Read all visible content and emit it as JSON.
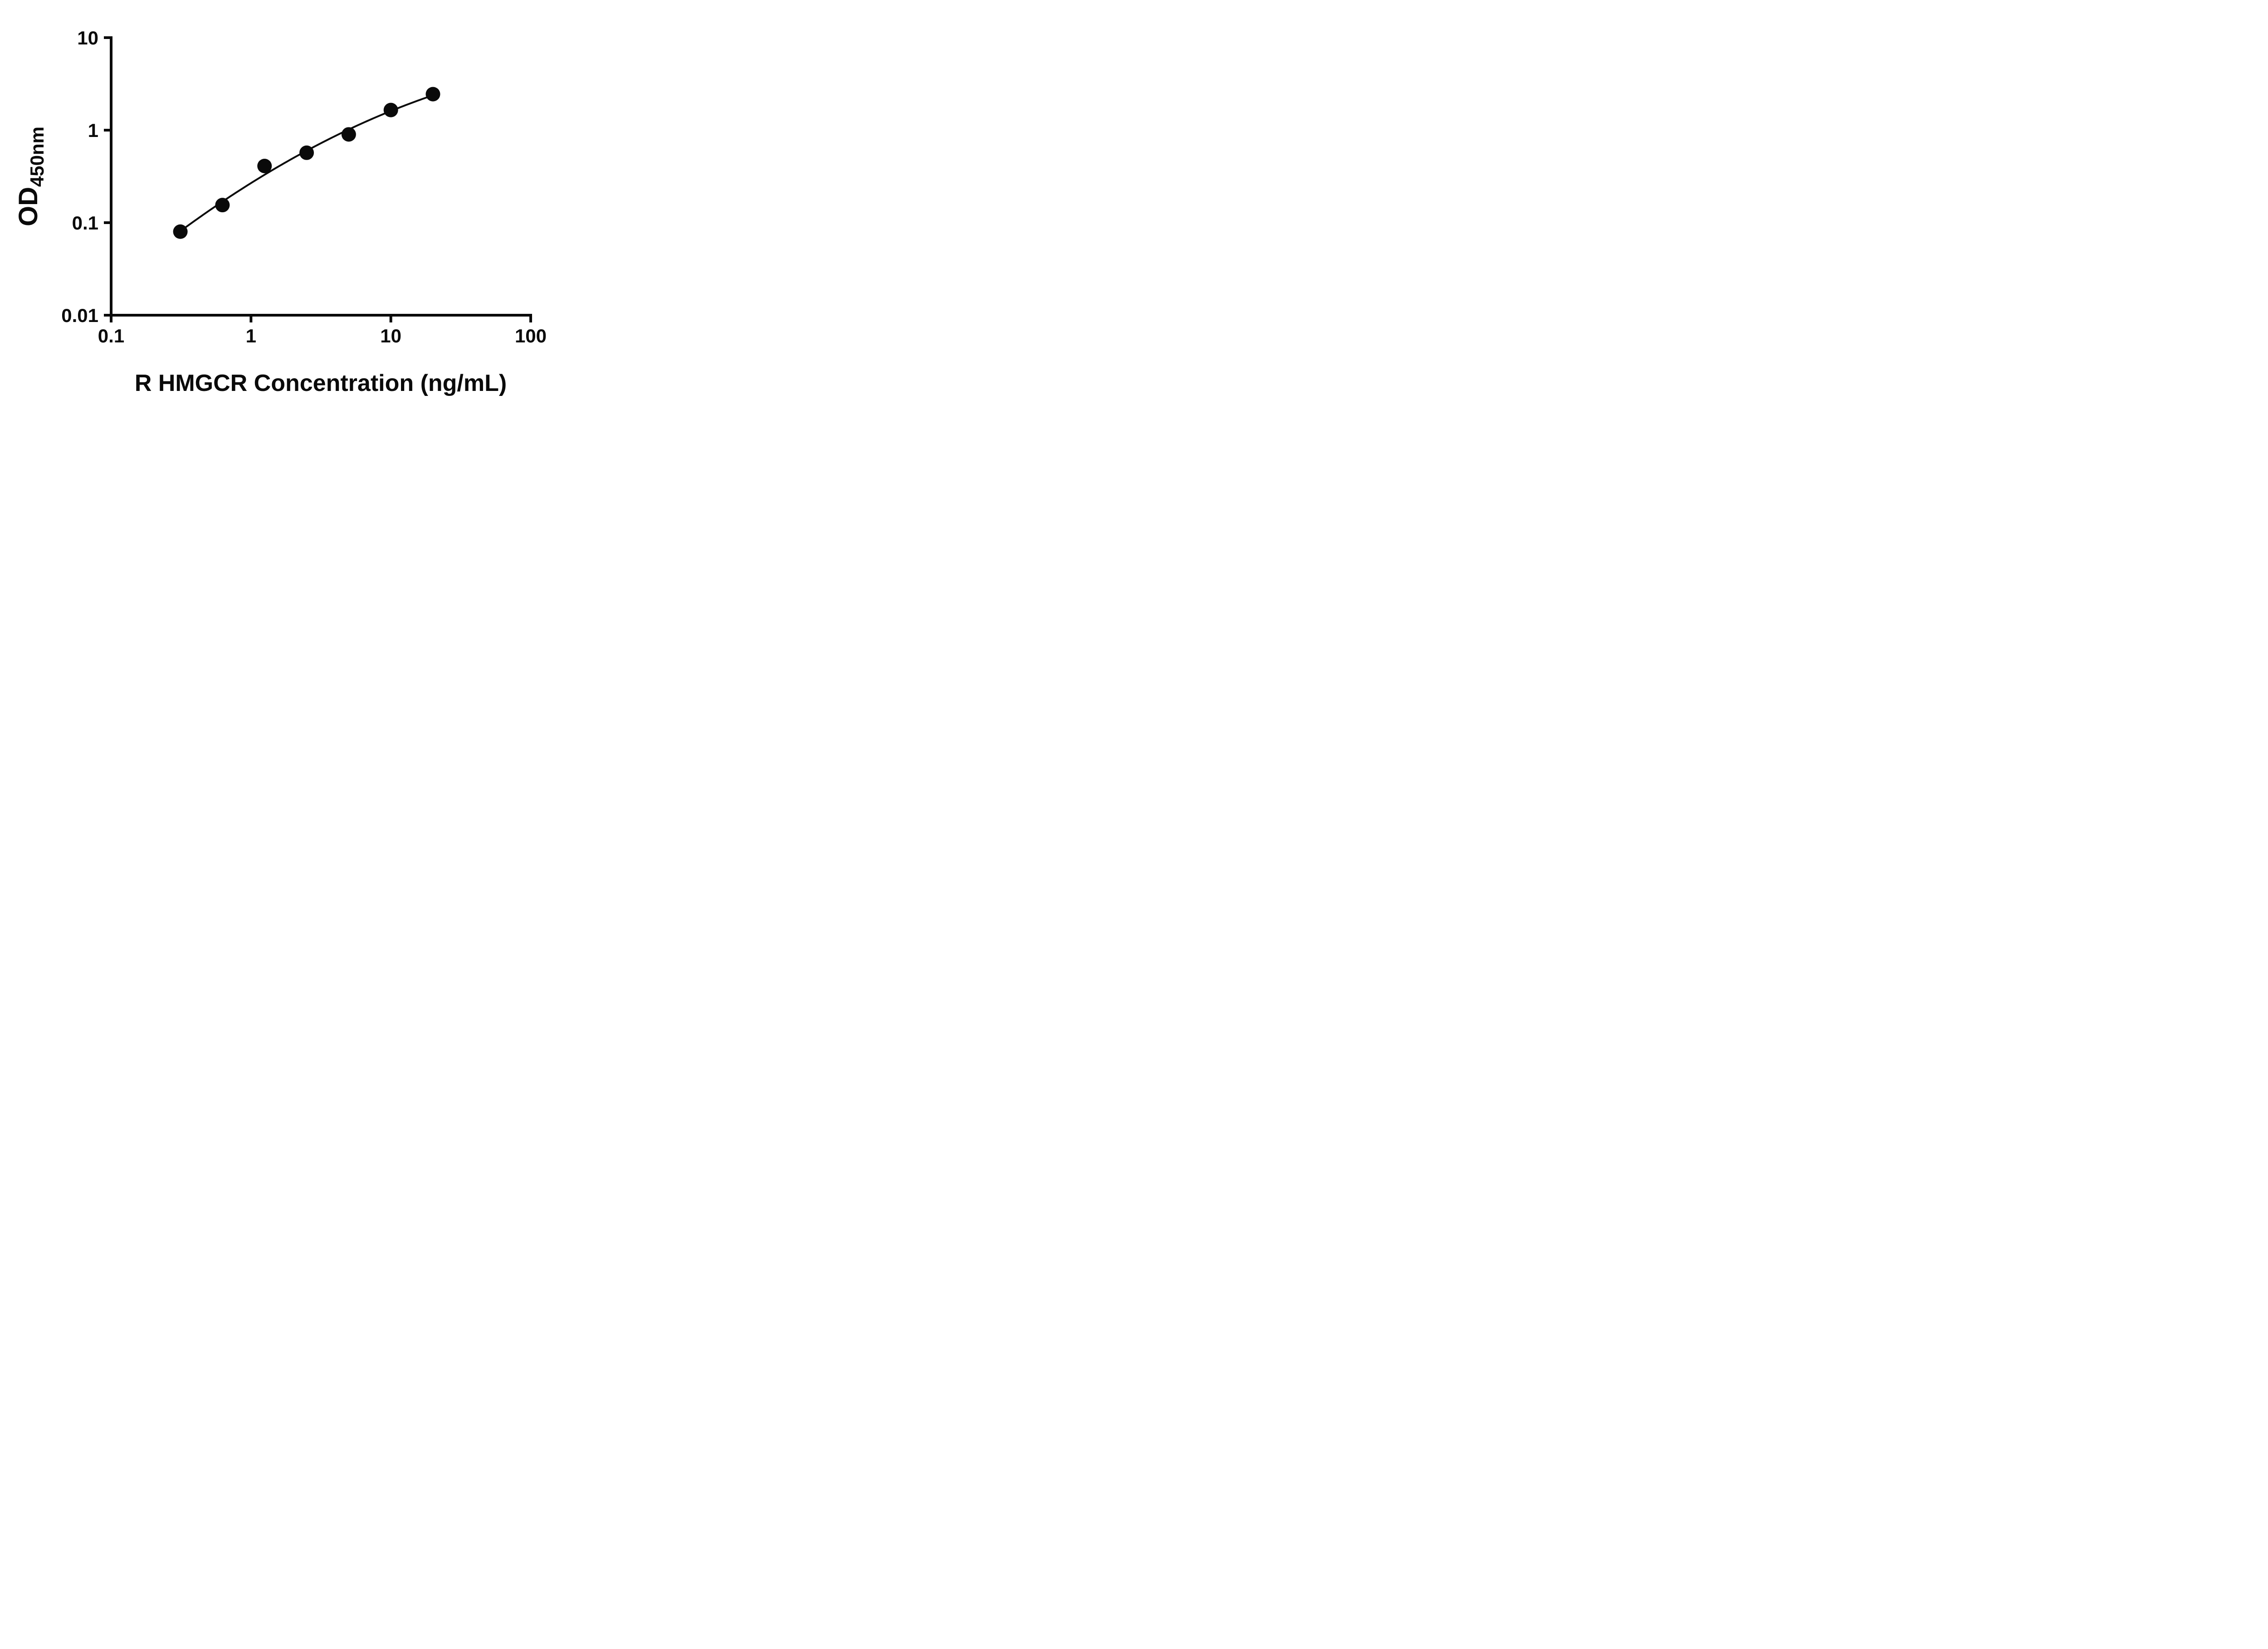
{
  "chart_data": {
    "type": "scatter",
    "title": "",
    "xlabel": "R HMGCR Concentration (ng/mL)",
    "ylabel_main": "OD",
    "ylabel_sub": "450nm",
    "xscale": "log",
    "yscale": "log",
    "xlim": [
      0.1,
      100
    ],
    "ylim": [
      0.01,
      10
    ],
    "x": [
      0.3125,
      0.625,
      1.25,
      2.5,
      5,
      10,
      20
    ],
    "y": [
      0.08,
      0.155,
      0.41,
      0.57,
      0.9,
      1.65,
      2.45
    ],
    "x_ticks": [
      {
        "value": 0.1,
        "label": "0.1"
      },
      {
        "value": 1,
        "label": "1"
      },
      {
        "value": 10,
        "label": "10"
      },
      {
        "value": 100,
        "label": "100"
      }
    ],
    "y_ticks": [
      {
        "value": 0.01,
        "label": "0.01"
      },
      {
        "value": 0.1,
        "label": "0.1"
      },
      {
        "value": 1,
        "label": "1"
      },
      {
        "value": 10,
        "label": "10"
      }
    ],
    "fit": {
      "kind": "quadratic-in-log-log",
      "curve_x_range": [
        0.3,
        20
      ]
    },
    "grid": "off",
    "legend": "none",
    "marker_color": "#0a0a0a",
    "line_color": "#0a0a0a"
  }
}
